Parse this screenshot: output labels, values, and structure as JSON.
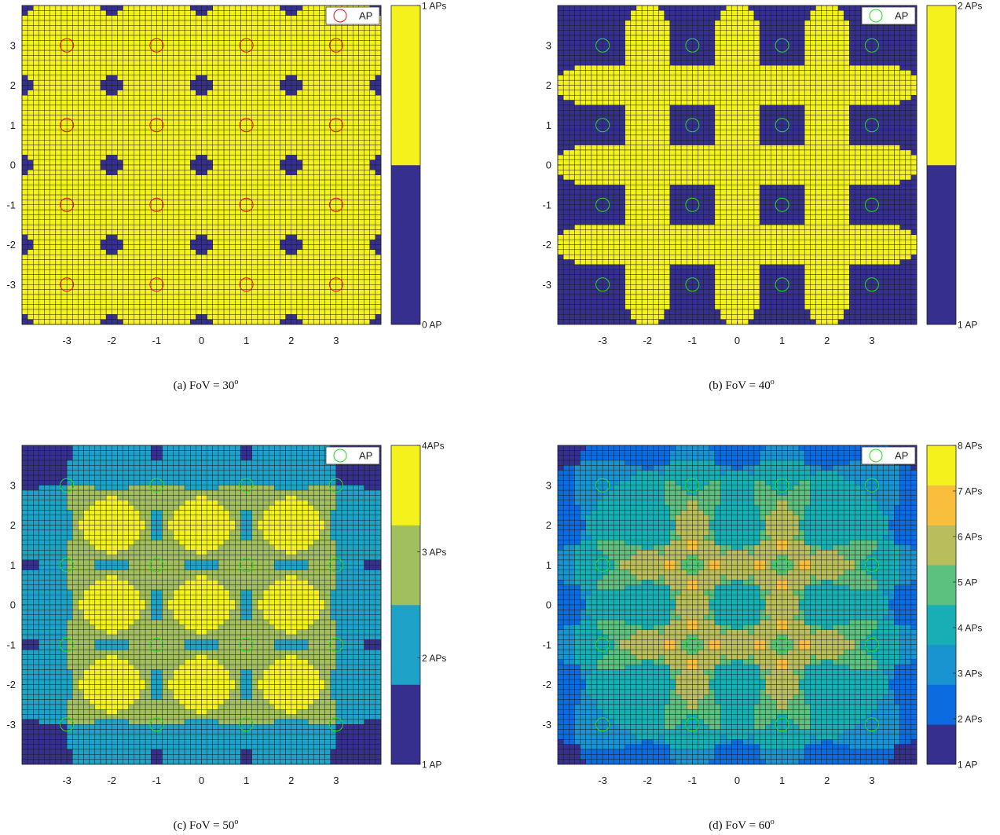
{
  "chart_data": [
    {
      "type": "heatmap",
      "panel": "a",
      "caption_prefix": "(a) FoV = ",
      "caption_value": "30",
      "caption_sup": "o",
      "xlim": [
        -4,
        4
      ],
      "ylim": [
        -4,
        4
      ],
      "x_ticks": [
        "-3",
        "-2",
        "-1",
        "0",
        "1",
        "2",
        "3"
      ],
      "y_ticks": [
        "3",
        "2",
        "1",
        "0",
        "-1",
        "-2",
        "-3"
      ],
      "ap_positions": [
        [
          -3,
          3
        ],
        [
          -1,
          3
        ],
        [
          1,
          3
        ],
        [
          3,
          3
        ],
        [
          -3,
          1
        ],
        [
          -1,
          1
        ],
        [
          1,
          1
        ],
        [
          3,
          1
        ],
        [
          -3,
          -1
        ],
        [
          -1,
          -1
        ],
        [
          1,
          -1
        ],
        [
          3,
          -1
        ],
        [
          -3,
          -3
        ],
        [
          -1,
          -3
        ],
        [
          1,
          -3
        ],
        [
          3,
          -3
        ]
      ],
      "coverage_radius": 1.2,
      "legend": {
        "label": "AP",
        "marker_color": "#ee1111",
        "position": "top-right"
      },
      "colorbar": {
        "min_count": 0,
        "colors": [
          "#35308e",
          "#f4f11d"
        ],
        "labels": [
          "0 AP",
          "1 APs"
        ]
      },
      "grid": true
    },
    {
      "type": "heatmap",
      "panel": "b",
      "caption_prefix": "(b) FoV = ",
      "caption_value": "40",
      "caption_sup": "o",
      "xlim": [
        -4,
        4
      ],
      "ylim": [
        -4,
        4
      ],
      "x_ticks": [
        "-3",
        "-2",
        "-1",
        "0",
        "1",
        "2",
        "3"
      ],
      "y_ticks": [
        "3",
        "2",
        "1",
        "0",
        "-1",
        "-2",
        "-3"
      ],
      "ap_positions": [
        [
          -3,
          3
        ],
        [
          -1,
          3
        ],
        [
          1,
          3
        ],
        [
          3,
          3
        ],
        [
          -3,
          1
        ],
        [
          -1,
          1
        ],
        [
          1,
          1
        ],
        [
          3,
          1
        ],
        [
          -3,
          -1
        ],
        [
          -1,
          -1
        ],
        [
          1,
          -1
        ],
        [
          3,
          -1
        ],
        [
          -3,
          -3
        ],
        [
          -1,
          -3
        ],
        [
          1,
          -3
        ],
        [
          3,
          -3
        ]
      ],
      "coverage_radius": 1.55,
      "legend": {
        "label": "AP",
        "marker_color": "#22dd22",
        "position": "top-right"
      },
      "colorbar": {
        "min_count": 1,
        "colors": [
          "#35308e",
          "#f4f11d"
        ],
        "labels": [
          "1 AP",
          "2 APs"
        ]
      },
      "grid": true
    },
    {
      "type": "heatmap",
      "panel": "c",
      "caption_prefix": "(c) FoV = ",
      "caption_value": "50",
      "caption_sup": "o",
      "xlim": [
        -4,
        4
      ],
      "ylim": [
        -4,
        4
      ],
      "x_ticks": [
        "-3",
        "-2",
        "-1",
        "0",
        "1",
        "2",
        "3"
      ],
      "y_ticks": [
        "3",
        "2",
        "1",
        "0",
        "-1",
        "-2",
        "-3"
      ],
      "ap_positions": [
        [
          -3,
          3
        ],
        [
          -1,
          3
        ],
        [
          1,
          3
        ],
        [
          3,
          3
        ],
        [
          -3,
          1
        ],
        [
          -1,
          1
        ],
        [
          1,
          1
        ],
        [
          3,
          1
        ],
        [
          -3,
          -1
        ],
        [
          -1,
          -1
        ],
        [
          1,
          -1
        ],
        [
          3,
          -1
        ],
        [
          -3,
          -3
        ],
        [
          -1,
          -3
        ],
        [
          1,
          -3
        ],
        [
          3,
          -3
        ]
      ],
      "coverage_radius": 2.05,
      "legend": {
        "label": "AP",
        "marker_color": "#22dd22",
        "position": "top-right"
      },
      "colorbar": {
        "min_count": 1,
        "colors": [
          "#35308e",
          "#1fa2c8",
          "#a2bf5f",
          "#f4f11d"
        ],
        "labels": [
          "1 AP",
          "2 APs",
          "3 APs",
          "4APs"
        ]
      },
      "grid": true
    },
    {
      "type": "heatmap",
      "panel": "d",
      "caption_prefix": "(d) FoV = ",
      "caption_value": "60",
      "caption_sup": "o",
      "xlim": [
        -4,
        4
      ],
      "ylim": [
        -4,
        4
      ],
      "x_ticks": [
        "-3",
        "-2",
        "-1",
        "0",
        "1",
        "2",
        "3"
      ],
      "y_ticks": [
        "3",
        "2",
        "1",
        "0",
        "-1",
        "-2",
        "-3"
      ],
      "ap_positions": [
        [
          -3,
          3
        ],
        [
          -1,
          3
        ],
        [
          1,
          3
        ],
        [
          3,
          3
        ],
        [
          -3,
          1
        ],
        [
          -1,
          1
        ],
        [
          1,
          1
        ],
        [
          3,
          1
        ],
        [
          -3,
          -1
        ],
        [
          -1,
          -1
        ],
        [
          1,
          -1
        ],
        [
          3,
          -1
        ],
        [
          -3,
          -3
        ],
        [
          -1,
          -3
        ],
        [
          1,
          -3
        ],
        [
          3,
          -3
        ]
      ],
      "coverage_radius": 2.6,
      "legend": {
        "label": "AP",
        "marker_color": "#22dd22",
        "position": "top-right"
      },
      "colorbar": {
        "min_count": 1,
        "colors": [
          "#35308e",
          "#0a6ce0",
          "#1a94d0",
          "#17afb5",
          "#5cc07f",
          "#b9bd5c",
          "#f9be3c",
          "#f4f11d"
        ],
        "labels": [
          "1 AP",
          "2 APs",
          "3 APs",
          "4 APs",
          "5 AP",
          "6 APs",
          "7 APs",
          "8 APs"
        ]
      },
      "grid": true
    }
  ]
}
